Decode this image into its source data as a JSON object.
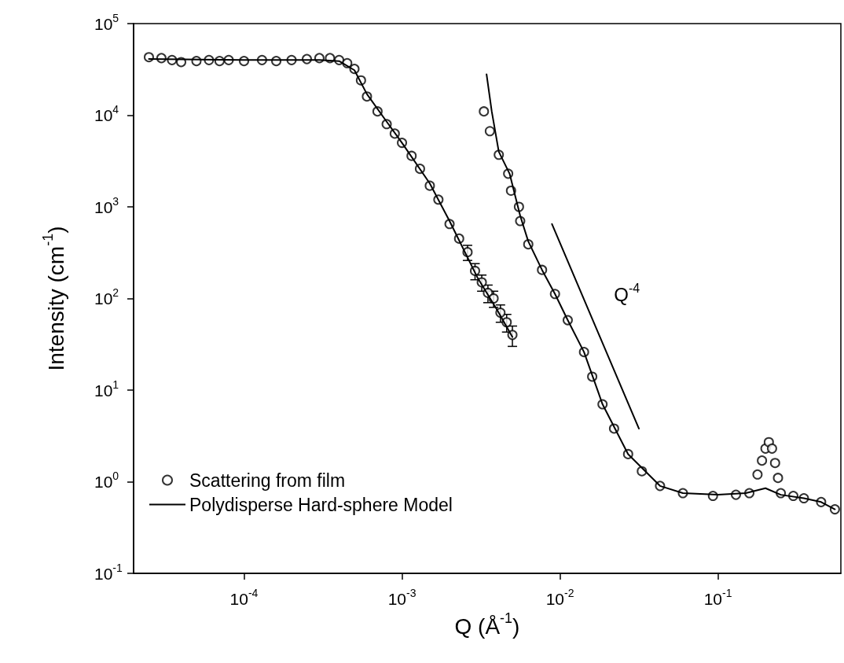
{
  "chart_data": {
    "type": "scatter",
    "xlabel": "Q (Å$^{-1}$)",
    "ylabel": "Intensity (cm$^{-1}$)",
    "log": "xy",
    "grid": false,
    "legend": "bottom left",
    "marker": "circle",
    "xlim": [
      2e-05,
      0.6
    ],
    "ylim": [
      0.1,
      100000
    ],
    "xticks": [
      {
        "value": 0.0001,
        "label": "10$^{-4}$"
      },
      {
        "value": 0.001,
        "label": "10$^{-3}$"
      },
      {
        "value": 0.01,
        "label": "10$^{-2}$"
      },
      {
        "value": 0.1,
        "label": "10$^{-1}$"
      }
    ],
    "yticks": [
      {
        "value": 0.1,
        "label": "10$^{-1}$"
      },
      {
        "value": 1,
        "label": "10$^{0}$"
      },
      {
        "value": 10,
        "label": "10$^{1}$"
      },
      {
        "value": 100,
        "label": "10$^{2}$"
      },
      {
        "value": 1000,
        "label": "10$^{3}$"
      },
      {
        "value": 10000,
        "label": "10$^{4}$"
      },
      {
        "value": 100000,
        "label": "10$^{5}$"
      }
    ],
    "annotations": [
      "Q$^{-4}$"
    ],
    "series": [
      {
        "name": "Scattering from film",
        "color": "#000000",
        "x": [
          2.5e-05,
          3e-05,
          3.5e-05,
          4e-05,
          5e-05,
          6e-05,
          7e-05,
          8e-05,
          0.0001,
          0.00013,
          0.00016,
          0.0002,
          0.00025,
          0.0003,
          0.00035,
          0.0004,
          0.00045,
          0.0005,
          0.00055,
          0.0006,
          0.0007,
          0.0008,
          0.0009,
          0.001,
          0.00115,
          0.0013,
          0.0015,
          0.0017,
          0.002,
          0.0023,
          0.0026,
          0.0029,
          0.0032,
          0.0035,
          0.0038,
          0.0042,
          0.0046,
          0.005,
          0.0033,
          0.0036,
          0.0041,
          0.0047,
          0.0049,
          0.0055,
          0.0056,
          0.0063,
          0.0077,
          0.0093,
          0.0112,
          0.0142,
          0.016,
          0.0186,
          0.022,
          0.027,
          0.033,
          0.043,
          0.06,
          0.093,
          0.13,
          0.158,
          0.178,
          0.19,
          0.2,
          0.21,
          0.22,
          0.23,
          0.24,
          0.25,
          0.3,
          0.35,
          0.45,
          0.55
        ],
        "values": [
          43000,
          42000,
          40000,
          38000,
          39000,
          40000,
          39000,
          40000,
          39000,
          40000,
          39000,
          40000,
          41000,
          42000,
          42000,
          40000,
          37000,
          32000,
          24000,
          16000,
          11000,
          8000,
          6300,
          5000,
          3600,
          2600,
          1700,
          1200,
          650,
          450,
          320,
          200,
          150,
          115,
          100,
          70,
          55,
          40,
          11000,
          6700,
          3700,
          2300,
          1500,
          1000,
          700,
          390,
          205,
          112,
          58,
          26,
          14,
          7,
          3.8,
          2,
          1.3,
          0.9,
          0.75,
          0.7,
          0.72,
          0.75,
          1.2,
          1.7,
          2.3,
          2.7,
          2.3,
          1.6,
          1.1,
          0.75,
          0.7,
          0.66,
          0.6,
          0.5
        ],
        "errors": [
          null,
          null,
          null,
          null,
          null,
          null,
          null,
          null,
          null,
          null,
          null,
          null,
          null,
          null,
          null,
          null,
          null,
          null,
          null,
          null,
          null,
          null,
          null,
          null,
          null,
          null,
          null,
          null,
          null,
          null,
          60,
          40,
          30,
          25,
          20,
          15,
          12,
          10,
          null,
          null,
          null,
          null,
          null,
          null,
          null,
          null,
          null,
          null,
          null,
          null,
          null,
          null,
          null,
          null,
          null,
          null,
          null,
          null,
          null,
          null,
          null,
          null,
          null,
          null,
          null,
          null,
          null,
          null,
          null,
          null,
          null,
          null
        ]
      },
      {
        "name": "Polydisperse Hard-sphere Model",
        "type": "line",
        "color": "#000000",
        "marker": "none",
        "line_style": "solid",
        "x": [
          2.5e-05,
          0.0001,
          0.0003,
          0.0004,
          0.0005,
          0.0006,
          0.0008,
          0.001,
          0.0015,
          0.002,
          0.003,
          0.004,
          0.005
        ],
        "values": [
          41000,
          40000,
          40000,
          39000,
          31000,
          17000,
          8500,
          5000,
          1800,
          700,
          170,
          75,
          38
        ]
      },
      {
        "type": "line",
        "color": "#000000",
        "marker": "none",
        "line_style": "solid",
        "x": [
          0.00343,
          0.0037,
          0.0041,
          0.0048,
          0.0056,
          0.0063,
          0.0077,
          0.0093,
          0.0112,
          0.0142,
          0.0186,
          0.027,
          0.043,
          0.06,
          0.1,
          0.15,
          0.2,
          0.25,
          0.35,
          0.45,
          0.55
        ],
        "values": [
          28000,
          11000,
          4000,
          2300,
          800,
          420,
          205,
          112,
          58,
          26,
          7,
          2,
          0.9,
          0.75,
          0.72,
          0.75,
          0.85,
          0.72,
          0.66,
          0.6,
          0.5
        ]
      },
      {
        "type": "line",
        "color": "#000000",
        "marker": "none",
        "line_style": "solid",
        "x": [
          0.0089,
          0.0316
        ],
        "values": [
          650,
          3.8
        ]
      }
    ]
  }
}
